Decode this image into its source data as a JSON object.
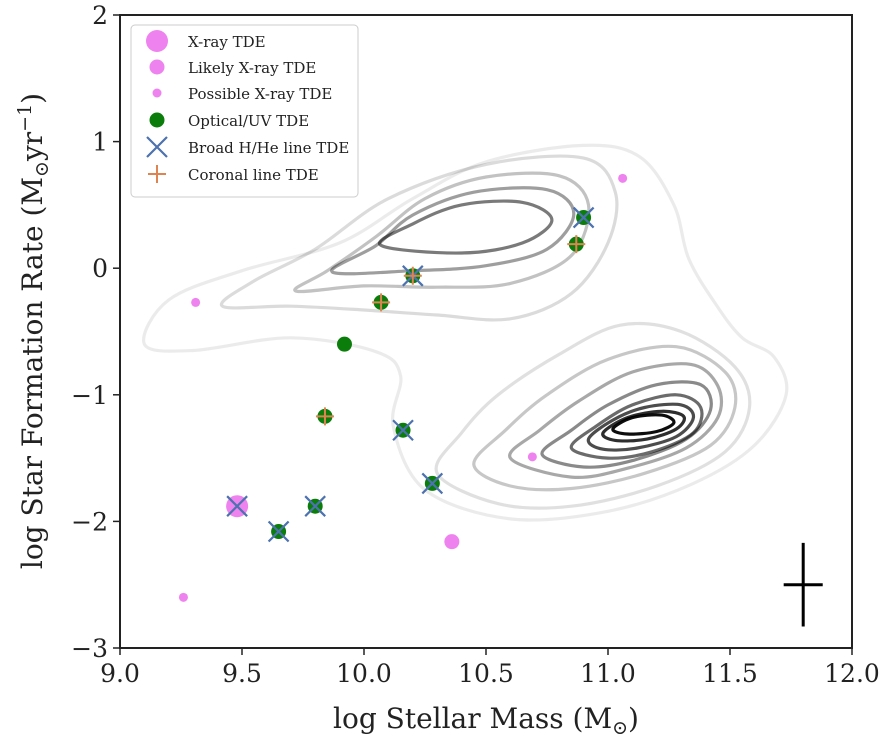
{
  "chart_data": {
    "type": "scatter",
    "title": "",
    "xlabel": "log Stellar Mass (M",
    "xlabel_sub": "⊙",
    "xlabel_close": ")",
    "ylabel": "log Star Formation Rate (M",
    "ylabel_sub": "⊙",
    "ylabel_mid": "yr",
    "ylabel_sup": "−1",
    "ylabel_close": ")",
    "xlim": [
      9.0,
      12.0
    ],
    "ylim": [
      -3,
      2
    ],
    "xticks": [
      "9.0",
      "9.5",
      "10.0",
      "10.5",
      "11.0",
      "11.5",
      "12.0"
    ],
    "yticks": [
      "2",
      "1",
      "0",
      "−1",
      "−2",
      "−3"
    ],
    "grid": false,
    "legend_position": "top-left",
    "colors": {
      "xray": "#ee82ee",
      "optical": "#0a7d0a",
      "broad": "#4c72b0",
      "coronal": "#dd8452",
      "contour": "#000000",
      "errorbar": "#000000"
    },
    "legend": [
      {
        "label": "X-ray TDE",
        "marker": "xray-large"
      },
      {
        "label": "Likely X-ray TDE",
        "marker": "xray-medium"
      },
      {
        "label": "Possible X-ray TDE",
        "marker": "xray-small"
      },
      {
        "label": "Optical/UV TDE",
        "marker": "optical"
      },
      {
        "label": "Broad H/He line TDE",
        "marker": "broad"
      },
      {
        "label": "Coronal line TDE",
        "marker": "coronal"
      }
    ],
    "series": [
      {
        "name": "X-ray TDE",
        "x": [
          9.48
        ],
        "y": [
          -1.88
        ]
      },
      {
        "name": "Likely X-ray TDE",
        "x": [
          10.36
        ],
        "y": [
          -2.16
        ]
      },
      {
        "name": "Possible X-ray TDE",
        "x": [
          9.31,
          11.06,
          10.69,
          9.26
        ],
        "y": [
          -0.27,
          0.71,
          -1.49,
          -2.6
        ]
      },
      {
        "name": "Optical/UV TDE",
        "x": [
          9.65,
          9.8,
          9.84,
          9.92,
          10.07,
          10.16,
          10.2,
          10.28,
          10.87,
          10.9
        ],
        "y": [
          -2.08,
          -1.88,
          -1.17,
          -0.6,
          -0.27,
          -1.28,
          -0.06,
          -1.7,
          0.19,
          0.4
        ]
      },
      {
        "name": "Broad H/He line TDE",
        "x": [
          9.48,
          9.65,
          9.8,
          10.16,
          10.2,
          10.28,
          10.9
        ],
        "y": [
          -1.88,
          -2.08,
          -1.88,
          -1.28,
          -0.06,
          -1.7,
          0.4
        ]
      },
      {
        "name": "Coronal line TDE",
        "x": [
          9.84,
          10.07,
          10.2,
          10.87
        ],
        "y": [
          -1.17,
          -0.27,
          -0.06,
          0.19
        ]
      }
    ],
    "error_bar": {
      "x": 11.8,
      "y": -2.5,
      "xerr": 0.08,
      "yerr": 0.33
    },
    "contours": [
      {
        "gray": 0.08,
        "path": [
          [
            9.1,
            -0.6
          ],
          [
            9.2,
            -0.25
          ],
          [
            9.5,
            -0.02
          ],
          [
            9.9,
            0.2
          ],
          [
            10.2,
            0.55
          ],
          [
            10.5,
            0.84
          ],
          [
            10.9,
            0.97
          ],
          [
            11.13,
            0.88
          ],
          [
            11.27,
            0.5
          ],
          [
            11.33,
            0.08
          ],
          [
            11.44,
            -0.28
          ],
          [
            11.55,
            -0.55
          ],
          [
            11.68,
            -0.7
          ],
          [
            11.73,
            -1.0
          ],
          [
            11.6,
            -1.4
          ],
          [
            11.35,
            -1.7
          ],
          [
            11.0,
            -1.92
          ],
          [
            10.6,
            -1.98
          ],
          [
            10.25,
            -1.75
          ],
          [
            10.12,
            -1.25
          ],
          [
            10.15,
            -0.85
          ],
          [
            10.05,
            -0.66
          ],
          [
            9.7,
            -0.55
          ],
          [
            9.3,
            -0.65
          ]
        ]
      },
      {
        "gray": 0.14,
        "path": [
          [
            9.42,
            -0.3
          ],
          [
            9.55,
            -0.1
          ],
          [
            9.8,
            0.15
          ],
          [
            10.1,
            0.55
          ],
          [
            10.5,
            0.82
          ],
          [
            10.9,
            0.87
          ],
          [
            11.03,
            0.6
          ],
          [
            11.0,
            0.2
          ],
          [
            10.85,
            -0.2
          ],
          [
            10.6,
            -0.4
          ],
          [
            10.3,
            -0.37
          ],
          [
            10.0,
            -0.33
          ],
          [
            9.7,
            -0.3
          ]
        ]
      },
      {
        "gray": 0.24,
        "path": [
          [
            9.72,
            -0.18
          ],
          [
            9.85,
            -0.02
          ],
          [
            10.05,
            0.25
          ],
          [
            10.25,
            0.55
          ],
          [
            10.5,
            0.72
          ],
          [
            10.8,
            0.73
          ],
          [
            10.92,
            0.5
          ],
          [
            10.85,
            0.1
          ],
          [
            10.6,
            -0.12
          ],
          [
            10.3,
            -0.15
          ],
          [
            10.0,
            -0.14
          ]
        ]
      },
      {
        "gray": 0.38,
        "path": [
          [
            9.87,
            -0.03
          ],
          [
            10.05,
            0.18
          ],
          [
            10.2,
            0.42
          ],
          [
            10.45,
            0.6
          ],
          [
            10.75,
            0.62
          ],
          [
            10.86,
            0.43
          ],
          [
            10.75,
            0.15
          ],
          [
            10.5,
            0.02
          ],
          [
            10.2,
            -0.02
          ]
        ]
      },
      {
        "gray": 0.52,
        "path": [
          [
            10.07,
            0.18
          ],
          [
            10.2,
            0.35
          ],
          [
            10.4,
            0.5
          ],
          [
            10.65,
            0.52
          ],
          [
            10.77,
            0.38
          ],
          [
            10.65,
            0.2
          ],
          [
            10.4,
            0.12
          ]
        ]
      },
      {
        "gray": 0.12,
        "path": [
          [
            10.3,
            -1.62
          ],
          [
            10.4,
            -1.3
          ],
          [
            10.55,
            -1.0
          ],
          [
            10.8,
            -0.68
          ],
          [
            11.05,
            -0.45
          ],
          [
            11.3,
            -0.5
          ],
          [
            11.52,
            -0.78
          ],
          [
            11.58,
            -1.1
          ],
          [
            11.48,
            -1.45
          ],
          [
            11.2,
            -1.72
          ],
          [
            10.85,
            -1.88
          ],
          [
            10.55,
            -1.86
          ]
        ]
      },
      {
        "gray": 0.22,
        "path": [
          [
            10.45,
            -1.55
          ],
          [
            10.58,
            -1.28
          ],
          [
            10.75,
            -1.0
          ],
          [
            11.0,
            -0.72
          ],
          [
            11.28,
            -0.62
          ],
          [
            11.48,
            -0.82
          ],
          [
            11.52,
            -1.1
          ],
          [
            11.42,
            -1.4
          ],
          [
            11.15,
            -1.62
          ],
          [
            10.85,
            -1.74
          ],
          [
            10.6,
            -1.72
          ]
        ]
      },
      {
        "gray": 0.34,
        "path": [
          [
            10.6,
            -1.5
          ],
          [
            10.72,
            -1.28
          ],
          [
            10.88,
            -1.05
          ],
          [
            11.1,
            -0.82
          ],
          [
            11.34,
            -0.76
          ],
          [
            11.45,
            -0.93
          ],
          [
            11.45,
            -1.18
          ],
          [
            11.32,
            -1.42
          ],
          [
            11.08,
            -1.58
          ],
          [
            10.85,
            -1.65
          ]
        ]
      },
      {
        "gray": 0.46,
        "path": [
          [
            10.73,
            -1.47
          ],
          [
            10.85,
            -1.28
          ],
          [
            11.0,
            -1.08
          ],
          [
            11.2,
            -0.92
          ],
          [
            11.38,
            -0.92
          ],
          [
            11.42,
            -1.12
          ],
          [
            11.32,
            -1.35
          ],
          [
            11.1,
            -1.52
          ],
          [
            10.9,
            -1.57
          ]
        ]
      },
      {
        "gray": 0.58,
        "path": [
          [
            10.85,
            -1.42
          ],
          [
            10.95,
            -1.25
          ],
          [
            11.1,
            -1.08
          ],
          [
            11.28,
            -1.0
          ],
          [
            11.38,
            -1.1
          ],
          [
            11.35,
            -1.3
          ],
          [
            11.18,
            -1.45
          ],
          [
            11.0,
            -1.5
          ]
        ]
      },
      {
        "gray": 0.7,
        "path": [
          [
            10.92,
            -1.35
          ],
          [
            11.02,
            -1.2
          ],
          [
            11.15,
            -1.1
          ],
          [
            11.3,
            -1.08
          ],
          [
            11.35,
            -1.18
          ],
          [
            11.28,
            -1.33
          ],
          [
            11.12,
            -1.42
          ],
          [
            10.98,
            -1.43
          ]
        ]
      },
      {
        "gray": 0.82,
        "path": [
          [
            10.98,
            -1.3
          ],
          [
            11.08,
            -1.18
          ],
          [
            11.22,
            -1.13
          ],
          [
            11.31,
            -1.17
          ],
          [
            11.28,
            -1.27
          ],
          [
            11.16,
            -1.35
          ],
          [
            11.03,
            -1.36
          ]
        ]
      },
      {
        "gray": 0.95,
        "path": [
          [
            11.02,
            -1.27
          ],
          [
            11.1,
            -1.18
          ],
          [
            11.22,
            -1.16
          ],
          [
            11.27,
            -1.22
          ],
          [
            11.2,
            -1.29
          ],
          [
            11.08,
            -1.31
          ]
        ]
      }
    ]
  }
}
